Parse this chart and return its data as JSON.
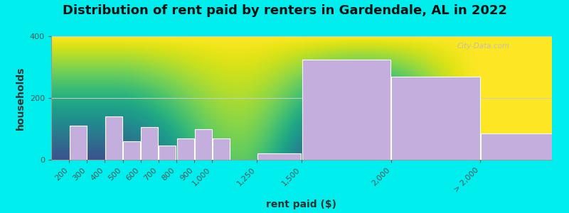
{
  "title": "Distribution of rent paid by renters in Gardendale, AL in 2022",
  "xlabel": "rent paid ($)",
  "ylabel": "households",
  "background_outer": "#00EEEE",
  "bar_color": "#C4AEDD",
  "bar_edge_color": "#FFFFFF",
  "ylim": [
    0,
    400
  ],
  "yticks": [
    0,
    200,
    400
  ],
  "categories": [
    "200",
    "300",
    "400",
    "500",
    "600",
    "700",
    "800",
    "900",
    "1,000",
    "1,250",
    "1,500",
    "2,000",
    "> 2,000"
  ],
  "x_vals": [
    200,
    300,
    400,
    500,
    600,
    700,
    800,
    900,
    1000,
    1250,
    1500,
    2000,
    2500
  ],
  "bar_widths": [
    100,
    100,
    100,
    100,
    100,
    100,
    100,
    100,
    100,
    250,
    500,
    500,
    500
  ],
  "values": [
    110,
    0,
    140,
    60,
    105,
    45,
    70,
    100,
    70,
    20,
    325,
    270,
    85
  ],
  "tick_positions": [
    200,
    300,
    400,
    500,
    600,
    700,
    800,
    900,
    1000,
    1250,
    1500,
    2000,
    2500
  ],
  "tick_labels": [
    "200",
    "300",
    "400",
    "500",
    "600",
    "700",
    "800",
    "900",
    "1,000",
    "1,250",
    "1,500",
    "2,000",
    "> 2,000"
  ],
  "title_fontsize": 13,
  "axis_fontsize": 10,
  "tick_fontsize": 8,
  "watermark_text": "City-Data.com",
  "xlim": [
    100,
    2900
  ]
}
